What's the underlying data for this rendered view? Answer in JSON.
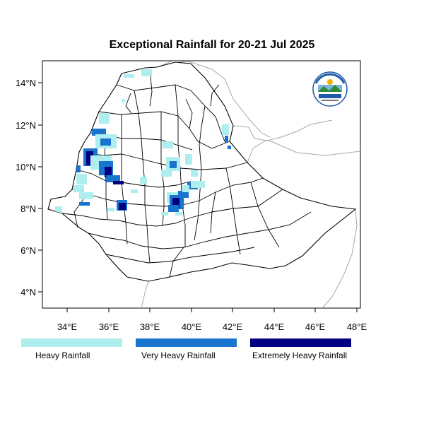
{
  "title": "Exceptional Rainfall for 20-21 Jul 2025",
  "axes": {
    "lon_ticks": [
      "34°E",
      "36°E",
      "38°E",
      "40°E",
      "42°E",
      "44°E",
      "46°E",
      "48°E"
    ],
    "lat_ticks": [
      "14°N",
      "12°N",
      "10°N",
      "8°N",
      "6°N",
      "4°N"
    ]
  },
  "logo": {
    "icon": "ethiopian-meteorology-institute-logo",
    "caption": "Ethiopian Meteorology Institute"
  },
  "legend": [
    {
      "label": "Heavy Rainfall",
      "color": "#aeeeee"
    },
    {
      "label": "Very Heavy Rainfall",
      "color": "#1874cd"
    },
    {
      "label": "Extremely Heavy Rainfall",
      "color": "#000080"
    }
  ],
  "colors": {
    "heavy": "#aeeeee",
    "very_heavy": "#1874cd",
    "extreme": "#000080",
    "border": "#000000",
    "neighbor_border": "#a9a9a9"
  }
}
